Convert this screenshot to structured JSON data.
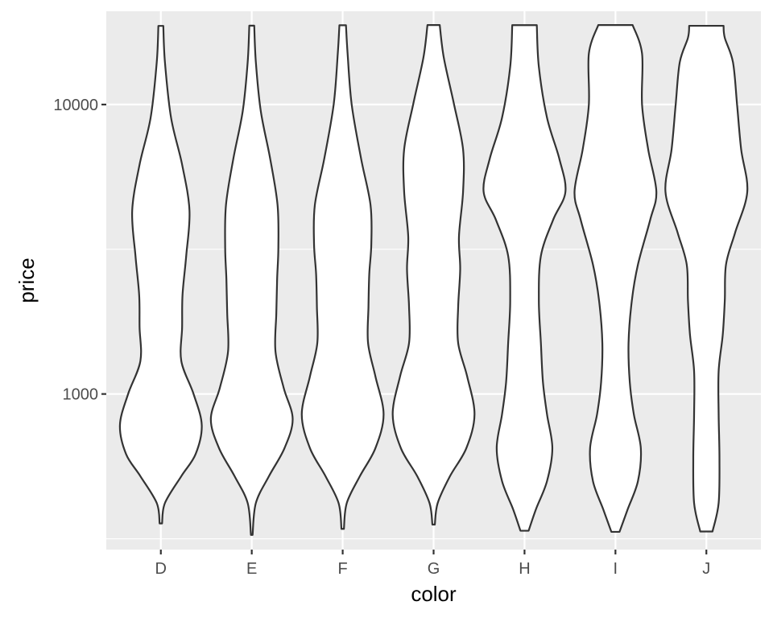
{
  "chart_data": {
    "type": "violin",
    "title": "",
    "xlabel": "color",
    "ylabel": "price",
    "y_scale": "log10",
    "ylim": [
      290,
      21000
    ],
    "y_major_ticks": [
      1000,
      10000
    ],
    "y_major_tick_labels": [
      "1000",
      "10000"
    ],
    "y_minor_gridlines": [
      316,
      3162
    ],
    "categories": [
      "D",
      "E",
      "F",
      "G",
      "H",
      "I",
      "J"
    ],
    "series": [
      {
        "name": "D",
        "min": 357,
        "max": 18693,
        "density_profile": [
          {
            "price": 357,
            "rel_width": 0.03
          },
          {
            "price": 420,
            "rel_width": 0.1
          },
          {
            "price": 520,
            "rel_width": 0.5
          },
          {
            "price": 620,
            "rel_width": 0.85
          },
          {
            "price": 780,
            "rel_width": 1.0
          },
          {
            "price": 1000,
            "rel_width": 0.8
          },
          {
            "price": 1300,
            "rel_width": 0.5
          },
          {
            "price": 1700,
            "rel_width": 0.52
          },
          {
            "price": 2200,
            "rel_width": 0.53
          },
          {
            "price": 3000,
            "rel_width": 0.62
          },
          {
            "price": 4300,
            "rel_width": 0.7
          },
          {
            "price": 6200,
            "rel_width": 0.52
          },
          {
            "price": 9000,
            "rel_width": 0.25
          },
          {
            "price": 14000,
            "rel_width": 0.1
          },
          {
            "price": 18693,
            "rel_width": 0.06
          }
        ]
      },
      {
        "name": "E",
        "min": 326,
        "max": 18731,
        "density_profile": [
          {
            "price": 326,
            "rel_width": 0.02
          },
          {
            "price": 420,
            "rel_width": 0.1
          },
          {
            "price": 520,
            "rel_width": 0.42
          },
          {
            "price": 650,
            "rel_width": 0.8
          },
          {
            "price": 820,
            "rel_width": 1.0
          },
          {
            "price": 1050,
            "rel_width": 0.78
          },
          {
            "price": 1400,
            "rel_width": 0.58
          },
          {
            "price": 1900,
            "rel_width": 0.6
          },
          {
            "price": 2500,
            "rel_width": 0.62
          },
          {
            "price": 3200,
            "rel_width": 0.65
          },
          {
            "price": 4500,
            "rel_width": 0.63
          },
          {
            "price": 6500,
            "rel_width": 0.45
          },
          {
            "price": 9500,
            "rel_width": 0.22
          },
          {
            "price": 14000,
            "rel_width": 0.1
          },
          {
            "price": 18731,
            "rel_width": 0.06
          }
        ]
      },
      {
        "name": "F",
        "min": 342,
        "max": 18791,
        "density_profile": [
          {
            "price": 342,
            "rel_width": 0.03
          },
          {
            "price": 420,
            "rel_width": 0.1
          },
          {
            "price": 520,
            "rel_width": 0.42
          },
          {
            "price": 650,
            "rel_width": 0.8
          },
          {
            "price": 850,
            "rel_width": 1.0
          },
          {
            "price": 1150,
            "rel_width": 0.8
          },
          {
            "price": 1500,
            "rel_width": 0.62
          },
          {
            "price": 2000,
            "rel_width": 0.63
          },
          {
            "price": 2600,
            "rel_width": 0.65
          },
          {
            "price": 3300,
            "rel_width": 0.7
          },
          {
            "price": 4500,
            "rel_width": 0.68
          },
          {
            "price": 6500,
            "rel_width": 0.45
          },
          {
            "price": 10000,
            "rel_width": 0.22
          },
          {
            "price": 15000,
            "rel_width": 0.12
          },
          {
            "price": 18791,
            "rel_width": 0.08
          }
        ]
      },
      {
        "name": "G",
        "min": 354,
        "max": 18818,
        "density_profile": [
          {
            "price": 354,
            "rel_width": 0.03
          },
          {
            "price": 420,
            "rel_width": 0.1
          },
          {
            "price": 520,
            "rel_width": 0.4
          },
          {
            "price": 650,
            "rel_width": 0.8
          },
          {
            "price": 850,
            "rel_width": 1.0
          },
          {
            "price": 1150,
            "rel_width": 0.82
          },
          {
            "price": 1500,
            "rel_width": 0.6
          },
          {
            "price": 2000,
            "rel_width": 0.6
          },
          {
            "price": 2700,
            "rel_width": 0.65
          },
          {
            "price": 3500,
            "rel_width": 0.62
          },
          {
            "price": 5000,
            "rel_width": 0.72
          },
          {
            "price": 7000,
            "rel_width": 0.72
          },
          {
            "price": 10000,
            "rel_width": 0.5
          },
          {
            "price": 14500,
            "rel_width": 0.25
          },
          {
            "price": 18818,
            "rel_width": 0.15
          }
        ]
      },
      {
        "name": "H",
        "min": 337,
        "max": 18803,
        "density_profile": [
          {
            "price": 337,
            "rel_width": 0.1
          },
          {
            "price": 400,
            "rel_width": 0.28
          },
          {
            "price": 500,
            "rel_width": 0.55
          },
          {
            "price": 650,
            "rel_width": 0.68
          },
          {
            "price": 850,
            "rel_width": 0.55
          },
          {
            "price": 1100,
            "rel_width": 0.45
          },
          {
            "price": 1500,
            "rel_width": 0.4
          },
          {
            "price": 2100,
            "rel_width": 0.35
          },
          {
            "price": 3000,
            "rel_width": 0.4
          },
          {
            "price": 4000,
            "rel_width": 0.7
          },
          {
            "price": 5000,
            "rel_width": 1.0
          },
          {
            "price": 6500,
            "rel_width": 0.85
          },
          {
            "price": 9000,
            "rel_width": 0.55
          },
          {
            "price": 13500,
            "rel_width": 0.35
          },
          {
            "price": 18803,
            "rel_width": 0.3
          }
        ]
      },
      {
        "name": "I",
        "min": 334,
        "max": 18823,
        "density_profile": [
          {
            "price": 334,
            "rel_width": 0.1
          },
          {
            "price": 400,
            "rel_width": 0.3
          },
          {
            "price": 500,
            "rel_width": 0.55
          },
          {
            "price": 650,
            "rel_width": 0.62
          },
          {
            "price": 850,
            "rel_width": 0.45
          },
          {
            "price": 1100,
            "rel_width": 0.35
          },
          {
            "price": 1500,
            "rel_width": 0.32
          },
          {
            "price": 2100,
            "rel_width": 0.4
          },
          {
            "price": 2800,
            "rel_width": 0.55
          },
          {
            "price": 4000,
            "rel_width": 0.85
          },
          {
            "price": 5000,
            "rel_width": 1.0
          },
          {
            "price": 7000,
            "rel_width": 0.8
          },
          {
            "price": 10000,
            "rel_width": 0.65
          },
          {
            "price": 15000,
            "rel_width": 0.65
          },
          {
            "price": 18823,
            "rel_width": 0.42
          }
        ]
      },
      {
        "name": "J",
        "min": 335,
        "max": 18710,
        "density_profile": [
          {
            "price": 335,
            "rel_width": 0.15
          },
          {
            "price": 420,
            "rel_width": 0.3
          },
          {
            "price": 600,
            "rel_width": 0.32
          },
          {
            "price": 850,
            "rel_width": 0.3
          },
          {
            "price": 1200,
            "rel_width": 0.3
          },
          {
            "price": 1600,
            "rel_width": 0.4
          },
          {
            "price": 2100,
            "rel_width": 0.45
          },
          {
            "price": 2800,
            "rel_width": 0.48
          },
          {
            "price": 3600,
            "rel_width": 0.7
          },
          {
            "price": 5000,
            "rel_width": 1.0
          },
          {
            "price": 7000,
            "rel_width": 0.85
          },
          {
            "price": 10000,
            "rel_width": 0.75
          },
          {
            "price": 14000,
            "rel_width": 0.65
          },
          {
            "price": 17000,
            "rel_width": 0.45
          },
          {
            "price": 18710,
            "rel_width": 0.42
          }
        ]
      }
    ]
  },
  "style": {
    "panel_background": "#ebebeb",
    "grid_color": "#ffffff",
    "violin_fill": "#ffffff",
    "violin_stroke": "#333333",
    "tick_color": "#333333",
    "tick_label_color": "#4d4d4d",
    "axis_title_color": "#000000"
  }
}
